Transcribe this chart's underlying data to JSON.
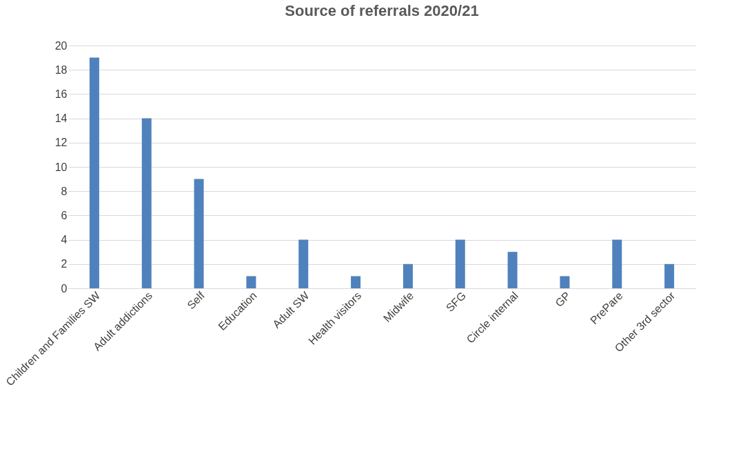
{
  "chart_data": {
    "type": "bar",
    "title": "Source of referrals 2020/21",
    "categories": [
      "Children and Families SW",
      "Adult addictions",
      "Self",
      "Education",
      "Adult SW",
      "Health visitors",
      "Midwife",
      "SFG",
      "Circle internal",
      "GP",
      "PrePare",
      "Other 3rd sector"
    ],
    "values": [
      19,
      14,
      9,
      1,
      4,
      1,
      2,
      4,
      3,
      1,
      4,
      2
    ],
    "color": "#4f81bd",
    "ylim": [
      0,
      20
    ],
    "yticks": [
      0,
      2,
      4,
      6,
      8,
      10,
      12,
      14,
      16,
      18,
      20
    ],
    "grid": "y"
  }
}
